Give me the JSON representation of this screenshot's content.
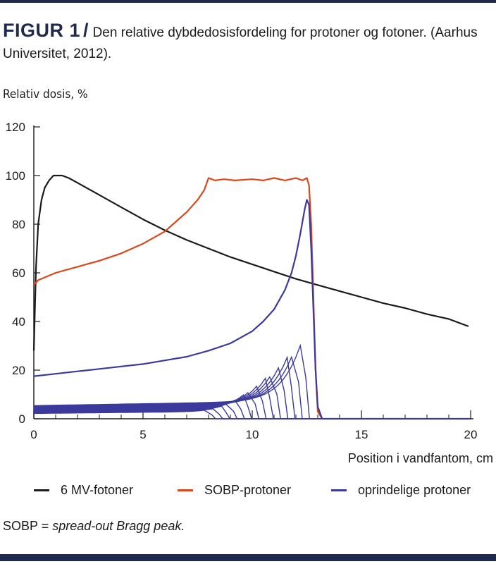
{
  "figure": {
    "label": "FIGUR 1",
    "separator": "/",
    "caption": "Den relative dybdedosisfordeling for protoner og fotoner. (Aarhus Universitet, 2012).",
    "note_prefix": "SOBP = ",
    "note_italic": "spread-out Bragg peak."
  },
  "chart_data": {
    "type": "line",
    "title": "",
    "ylabel": "Relativ dosis, %",
    "xlabel": "Position i vandfantom, cm",
    "xlim": [
      0,
      20
    ],
    "ylim": [
      0,
      120
    ],
    "xticks": [
      "0",
      "5",
      "10",
      "15",
      "20"
    ],
    "yticks": [
      "0",
      "20",
      "40",
      "60",
      "80",
      "100",
      "120"
    ],
    "grid": false,
    "legend": "bottom",
    "series": [
      {
        "name": "6 MV-fotoner",
        "color": "#1a1a1a",
        "x": [
          0,
          0.1,
          0.2,
          0.35,
          0.5,
          0.7,
          0.9,
          1.1,
          1.3,
          1.6,
          2,
          3,
          4,
          5,
          6,
          7,
          8,
          9,
          10,
          11,
          12,
          13,
          14,
          15,
          16,
          17,
          18,
          19,
          19.9
        ],
        "y": [
          28,
          62,
          80,
          90,
          95,
          98,
          100,
          100,
          100,
          99,
          97,
          92,
          87,
          82,
          77.5,
          73.5,
          70,
          66.5,
          63.5,
          60.5,
          57.5,
          55,
          52.5,
          50,
          47.5,
          45.5,
          43,
          41,
          38
        ]
      },
      {
        "name": "SOBP-protoner",
        "color": "#d9481a",
        "x": [
          0,
          0.2,
          1,
          2,
          3,
          4,
          5,
          6,
          6.5,
          7,
          7.5,
          7.8,
          8,
          8.3,
          8.7,
          9.2,
          10,
          10.5,
          11,
          11.5,
          12,
          12.3,
          12.5,
          12.6,
          12.7,
          12.8,
          12.9,
          13,
          13.2
        ],
        "y": [
          55,
          57,
          60,
          62.5,
          65,
          68,
          72,
          77,
          81,
          85,
          90,
          94,
          99,
          98,
          98.5,
          98,
          98.5,
          98,
          99,
          98,
          99,
          98,
          99,
          96,
          80,
          50,
          20,
          3,
          0
        ]
      },
      {
        "name": "oprindelige protoner",
        "color": "#3b3a9c",
        "x": [
          0,
          1,
          2,
          3,
          4,
          5,
          6,
          7,
          8,
          9,
          10,
          10.5,
          11,
          11.5,
          11.8,
          12,
          12.2,
          12.4,
          12.5,
          12.6,
          12.7,
          12.8,
          12.9,
          13,
          13.2,
          20
        ],
        "y": [
          17.5,
          18.5,
          19.5,
          20.5,
          21.5,
          22.5,
          24,
          25.5,
          28,
          31,
          36,
          40,
          45,
          53,
          60,
          67,
          76,
          86,
          90,
          88,
          70,
          45,
          20,
          5,
          0,
          0
        ]
      }
    ]
  }
}
